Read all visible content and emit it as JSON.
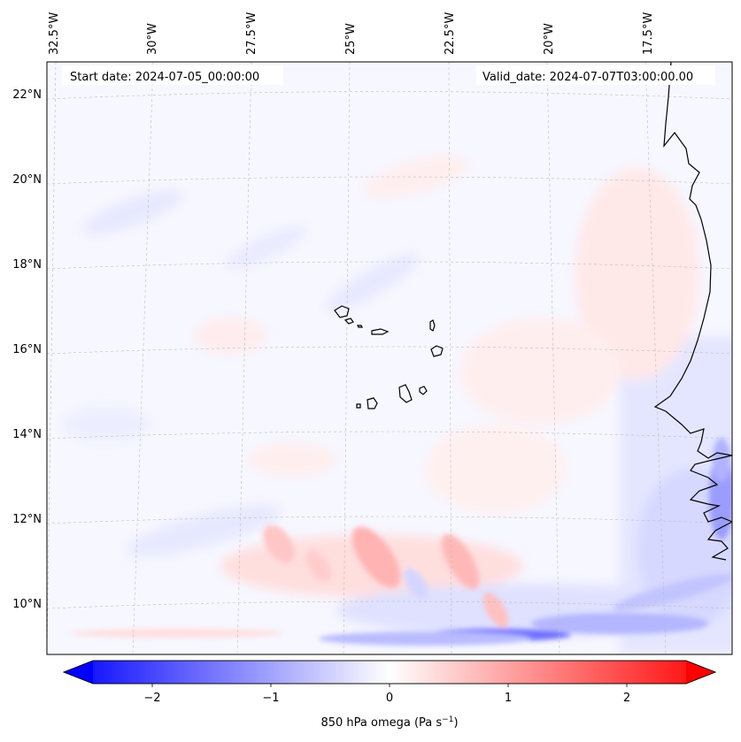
{
  "header": {
    "start_date": "Start date: 2024-07-05_00:00:00",
    "valid_date": "Valid_date: 2024-07-07T03:00:00.00"
  },
  "longitude_labels": [
    "32.5°W",
    "30°W",
    "27.5°W",
    "25°W",
    "22.5°W",
    "20°W",
    "17.5°W"
  ],
  "latitude_labels": [
    "22°N",
    "20°N",
    "18°N",
    "16°N",
    "14°N",
    "12°N",
    "10°N"
  ],
  "colorbar": {
    "ticks": [
      "−2",
      "−1",
      "0",
      "1",
      "2"
    ],
    "tick_values": [
      -2,
      -1,
      0,
      1,
      2
    ],
    "range": [
      -2.5,
      2.5
    ],
    "label": "850 hPa omega (Pa s",
    "label_superscript": "−1",
    "label_suffix": ")",
    "colormap": "bwr",
    "extend": "both",
    "color_min": "#0000ff",
    "color_mid": "#ffffff",
    "color_max": "#ff0000"
  },
  "map": {
    "variable": "850 hPa omega",
    "features": [
      "Cape Verde islands",
      "West African coastline"
    ],
    "gridlines": "dashed"
  }
}
